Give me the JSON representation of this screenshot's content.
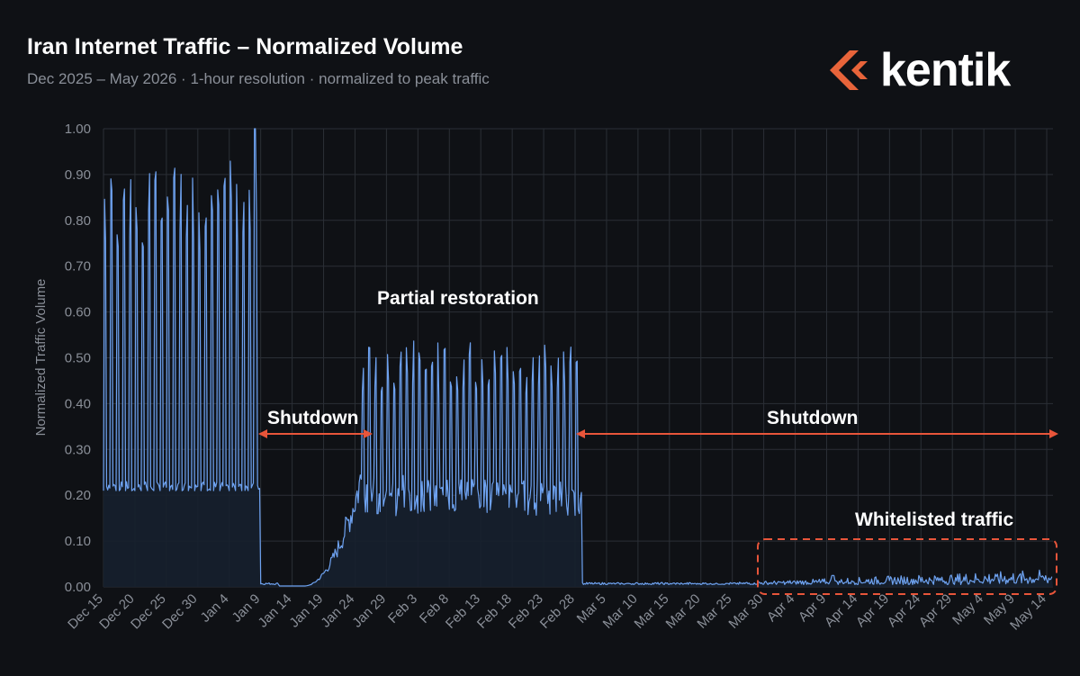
{
  "header": {
    "title": "Iran Internet Traffic – Normalized Volume",
    "subtitle": "Dec 2025 – May 2026  ·  1-hour resolution  ·  normalized to peak traffic"
  },
  "logo": {
    "text": "kentik",
    "icon": "kentik-chevron-logo",
    "accent": "#e8643a"
  },
  "colors": {
    "line": "#6ea2f0",
    "fill": "#16202e",
    "grid": "#2b2f36",
    "arrow": "#e8553a",
    "whitelist_box": "#e8553a"
  },
  "annotations": {
    "partial": "Partial restoration",
    "shutdown1": "Shutdown",
    "shutdown2": "Shutdown",
    "whitelisted": "Whitelisted traffic"
  },
  "chart_data": {
    "type": "line",
    "title": "Iran Internet Traffic – Normalized Volume",
    "ylabel": "Normalized Traffic Volume",
    "xlabel": "",
    "ylim": [
      0,
      1.0
    ],
    "yticks": [
      "0.00",
      "0.10",
      "0.20",
      "0.30",
      "0.40",
      "0.50",
      "0.60",
      "0.70",
      "0.80",
      "0.90",
      "1.00"
    ],
    "xticks": [
      "Dec 15",
      "Dec 20",
      "Dec 25",
      "Dec 30",
      "Jan 4",
      "Jan 9",
      "Jan 14",
      "Jan 19",
      "Jan 24",
      "Jan 29",
      "Feb 3",
      "Feb 8",
      "Feb 13",
      "Feb 18",
      "Feb 23",
      "Feb 28",
      "Mar 5",
      "Mar 10",
      "Mar 15",
      "Mar 20",
      "Mar 25",
      "Mar 30",
      "Apr 4",
      "Apr 9",
      "Apr 14",
      "Apr 19",
      "Apr 24",
      "Apr 29",
      "May 4",
      "May 9",
      "May 14"
    ],
    "x_start": "Dec 15",
    "grid": true,
    "periods": [
      {
        "start_day": 0,
        "end_day": 25,
        "label": "",
        "daily_peak_range": [
          0.78,
          1.0
        ],
        "daily_trough": 0.21
      },
      {
        "start_day": 25,
        "end_day": 41,
        "label": "Shutdown",
        "level": 0.005
      },
      {
        "start_day": 41,
        "end_day": 76,
        "label": "Partial restoration",
        "daily_peak_range": [
          0.44,
          0.57
        ],
        "daily_trough": 0.21
      },
      {
        "start_day": 76,
        "end_day": 151,
        "label": "Shutdown",
        "level": 0.01
      },
      {
        "start_day": 106,
        "end_day": 151,
        "label": "Whitelisted traffic",
        "range": [
          0.01,
          0.04
        ]
      }
    ]
  }
}
